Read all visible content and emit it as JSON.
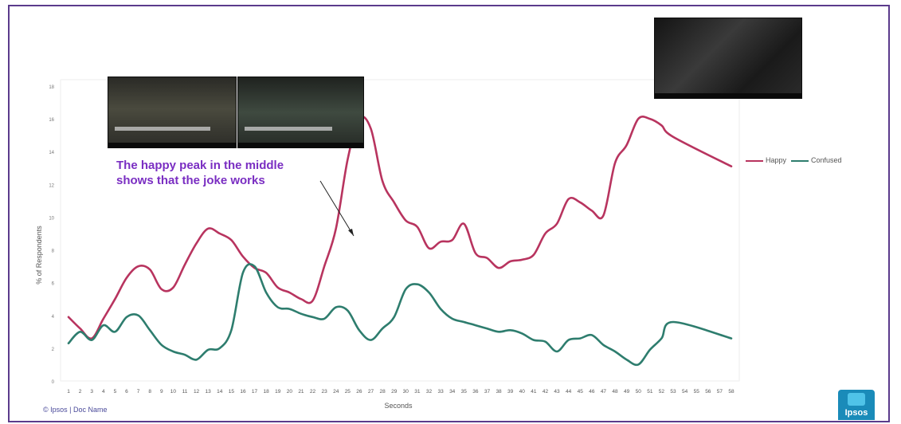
{
  "annotation": {
    "line1": "The happy peak in the middle",
    "line2": "shows that the joke works"
  },
  "footer": {
    "text": "© Ipsos | Doc Name",
    "logo": "Ipsos"
  },
  "colors": {
    "happy": "#b8345f",
    "confused": "#2e7d6e",
    "annotation": "#7a2ec2",
    "frame": "#5b3b8c"
  },
  "chart_data": {
    "type": "line",
    "title": "",
    "xlabel": "Seconds",
    "ylabel": "% of Respondents",
    "ylim": [
      0,
      18
    ],
    "yticks": [
      0,
      2,
      4,
      6,
      8,
      10,
      12,
      14,
      16,
      18
    ],
    "grid": false,
    "legend_position": "right",
    "x": [
      1,
      2,
      3,
      4,
      5,
      6,
      7,
      8,
      9,
      10,
      11,
      12,
      13,
      14,
      15,
      16,
      17,
      18,
      19,
      20,
      21,
      22,
      23,
      24,
      25,
      26,
      27,
      28,
      29,
      30,
      31,
      32,
      33,
      34,
      35,
      36,
      37,
      38,
      39,
      40,
      41,
      42,
      43,
      44,
      45,
      46,
      47,
      48,
      49,
      50,
      51,
      52,
      53,
      54,
      55,
      56,
      57,
      58
    ],
    "series": [
      {
        "name": "Happy",
        "values": [
          3.9,
          3.2,
          2.6,
          3.8,
          5.0,
          6.3,
          7.0,
          6.8,
          5.6,
          5.7,
          7.1,
          8.4,
          9.3,
          9.0,
          8.6,
          7.6,
          6.9,
          6.6,
          5.7,
          5.4,
          5.0,
          4.9,
          7.0,
          9.3,
          13.5,
          16.0,
          15.4,
          12.2,
          10.9,
          9.8,
          9.4,
          8.1,
          8.5,
          8.6,
          9.6,
          7.8,
          7.5,
          6.9,
          7.3,
          7.4,
          7.7,
          9.0,
          9.6,
          11.1,
          10.9,
          10.4,
          10.1,
          13.3,
          14.4,
          16.0,
          16.0,
          15.6,
          14.9,
          13.1
        ],
        "x": [
          1,
          2,
          3,
          4,
          5,
          6,
          7,
          8,
          9,
          10,
          11,
          12,
          13,
          14,
          15,
          16,
          17,
          18,
          19,
          20,
          21,
          22,
          23,
          24,
          25,
          26,
          27,
          28,
          29,
          30,
          31,
          32,
          33,
          34,
          35,
          36,
          37,
          38,
          39,
          40,
          41,
          42,
          43,
          44,
          45,
          46,
          47,
          48,
          49,
          50,
          51,
          52,
          53,
          58
        ]
      },
      {
        "name": "Confused",
        "values": [
          2.3,
          3.0,
          2.5,
          3.4,
          3.0,
          3.9,
          4.0,
          3.1,
          2.2,
          1.8,
          1.6,
          1.3,
          1.9,
          2.0,
          3.1,
          6.6,
          7.0,
          5.4,
          4.5,
          4.4,
          4.1,
          3.9,
          3.8,
          4.5,
          4.3,
          3.1,
          2.5,
          3.2,
          3.9,
          5.6,
          5.9,
          5.4,
          4.4,
          3.8,
          3.6,
          3.4,
          3.2,
          3.0,
          3.1,
          2.9,
          2.5,
          2.4,
          1.8,
          2.5,
          2.6,
          2.8,
          2.2,
          1.8,
          1.3,
          1.0,
          1.9,
          2.6,
          3.6,
          2.6
        ],
        "x": [
          1,
          2,
          3,
          4,
          5,
          6,
          7,
          8,
          9,
          10,
          11,
          12,
          13,
          14,
          15,
          16,
          17,
          18,
          19,
          20,
          21,
          22,
          23,
          24,
          25,
          26,
          27,
          28,
          29,
          30,
          31,
          32,
          33,
          34,
          35,
          36,
          37,
          38,
          39,
          40,
          41,
          42,
          43,
          44,
          45,
          46,
          47,
          48,
          49,
          50,
          51,
          52,
          53,
          58
        ]
      }
    ]
  }
}
